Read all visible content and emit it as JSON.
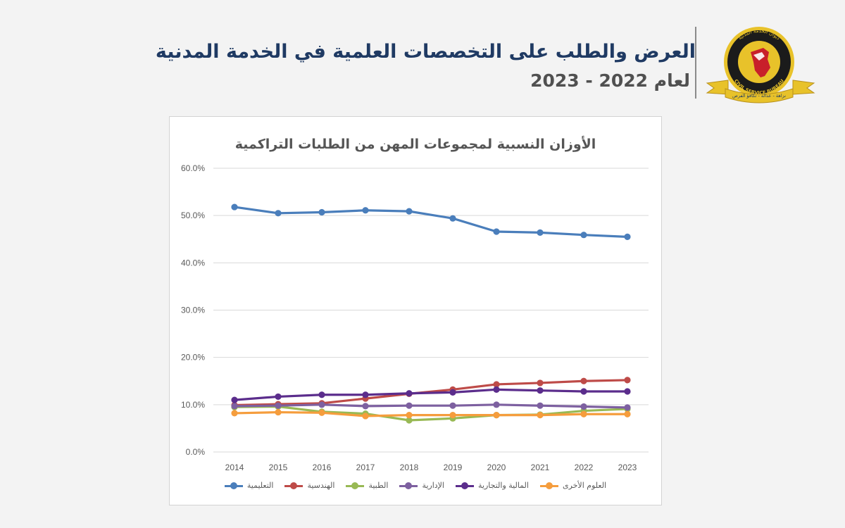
{
  "header": {
    "title": "العرض والطلب على التخصصات العلمية في الخدمة المدنية",
    "subtitle": "لعام 2022  -  2023",
    "logo_text_top": "ديوان الخدمة المدنية",
    "logo_text_bottom": "CIVIL SERVICE BUREAU",
    "logo_ribbon": "نزاهة - عدالة - تكافؤ الفرص"
  },
  "colors": {
    "title": "#1f3a63",
    "subtitle": "#505050",
    "logo_gold": "#e8c22a",
    "logo_red": "#c8202a"
  },
  "chart_data": {
    "type": "line",
    "title": "الأوزان النسبية لمجموعات المهن من الطلبات التراكمية",
    "categories": [
      "2014",
      "2015",
      "2016",
      "2017",
      "2018",
      "2019",
      "2020",
      "2021",
      "2022",
      "2023"
    ],
    "ylim": [
      0,
      60
    ],
    "yticks": [
      "0.0%",
      "10.0%",
      "20.0%",
      "30.0%",
      "40.0%",
      "50.0%",
      "60.0%"
    ],
    "yticks_values": [
      0,
      10,
      20,
      30,
      40,
      50,
      60
    ],
    "grid": true,
    "legend_position": "bottom",
    "series": [
      {
        "name": "التعليمية",
        "color": "#4a7ebb",
        "values": [
          51.8,
          50.5,
          50.7,
          51.1,
          50.9,
          49.4,
          46.6,
          46.4,
          45.9,
          45.5
        ]
      },
      {
        "name": "الهندسية",
        "color": "#be4b48",
        "values": [
          9.9,
          10.1,
          10.3,
          11.3,
          12.3,
          13.2,
          14.3,
          14.6,
          15.0,
          15.2
        ]
      },
      {
        "name": "الطبية",
        "color": "#98b954",
        "values": [
          9.5,
          9.6,
          8.5,
          8.1,
          6.7,
          7.1,
          7.8,
          7.9,
          8.7,
          9.1
        ]
      },
      {
        "name": "الإدارية",
        "color": "#7d60a0",
        "values": [
          9.7,
          9.8,
          10.0,
          9.7,
          9.8,
          9.8,
          10.0,
          9.8,
          9.6,
          9.4
        ]
      },
      {
        "name": "المالية والتجارية",
        "color": "#5b2d8c",
        "values": [
          11.0,
          11.7,
          12.1,
          12.1,
          12.4,
          12.6,
          13.2,
          13.0,
          12.8,
          12.8
        ]
      },
      {
        "name": "العلوم الأخرى",
        "color": "#f59d3d",
        "values": [
          8.2,
          8.4,
          8.3,
          7.6,
          7.8,
          7.8,
          7.8,
          7.8,
          8.0,
          8.0
        ]
      }
    ]
  }
}
